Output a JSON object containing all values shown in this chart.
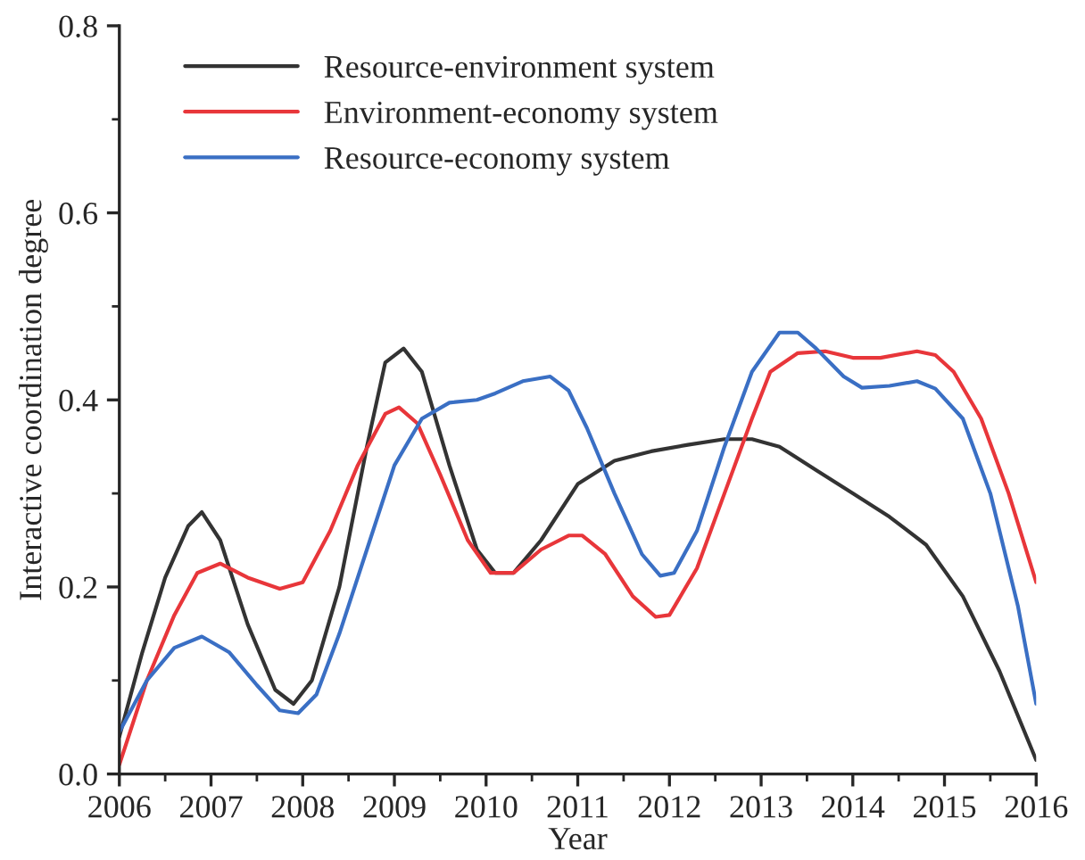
{
  "chart_data": {
    "type": "line",
    "xlabel": "Year",
    "ylabel": "Interactive coordination degree",
    "xlim": [
      2006,
      2016
    ],
    "ylim": [
      0,
      0.8
    ],
    "xticks": [
      2006,
      2007,
      2008,
      2009,
      2010,
      2011,
      2012,
      2013,
      2014,
      2015,
      2016
    ],
    "yticks": [
      {
        "value": 0,
        "label": "0.0"
      },
      {
        "value": 0.2,
        "label": "0.2"
      },
      {
        "value": 0.4,
        "label": "0.4"
      },
      {
        "value": 0.6,
        "label": "0.6"
      },
      {
        "value": 0.8,
        "label": "0.8"
      }
    ],
    "legend": "top left",
    "grid": false,
    "marker": "none",
    "line_style": "solid",
    "series": [
      {
        "name": "Resource-environment system",
        "color": "#333333",
        "x": [
          2006,
          2006.25,
          2006.5,
          2006.75,
          2006.9,
          2007.1,
          2007.4,
          2007.7,
          2007.9,
          2008.1,
          2008.4,
          2008.7,
          2008.9,
          2009.1,
          2009.3,
          2009.6,
          2009.9,
          2010.1,
          2010.3,
          2010.6,
          2011,
          2011.4,
          2011.8,
          2012.2,
          2012.6,
          2012.9,
          2013.2,
          2013.6,
          2014,
          2014.4,
          2014.8,
          2015.2,
          2015.6,
          2016
        ],
        "values": [
          0.04,
          0.13,
          0.21,
          0.265,
          0.28,
          0.25,
          0.16,
          0.09,
          0.075,
          0.1,
          0.2,
          0.35,
          0.44,
          0.455,
          0.43,
          0.33,
          0.24,
          0.215,
          0.215,
          0.25,
          0.31,
          0.335,
          0.345,
          0.352,
          0.358,
          0.358,
          0.35,
          0.325,
          0.3,
          0.275,
          0.245,
          0.19,
          0.11,
          0.015
        ]
      },
      {
        "name": "Environment-economy system",
        "color": "#e8363a",
        "x": [
          2006,
          2006.3,
          2006.6,
          2006.85,
          2007.1,
          2007.4,
          2007.75,
          2008,
          2008.3,
          2008.6,
          2008.9,
          2009.05,
          2009.25,
          2009.5,
          2009.8,
          2010.05,
          2010.3,
          2010.6,
          2010.9,
          2011.05,
          2011.3,
          2011.6,
          2011.85,
          2012,
          2012.3,
          2012.6,
          2012.9,
          2013.1,
          2013.4,
          2013.7,
          2014,
          2014.3,
          2014.7,
          2014.9,
          2015.1,
          2015.4,
          2015.7,
          2016
        ],
        "values": [
          0.01,
          0.1,
          0.17,
          0.215,
          0.225,
          0.21,
          0.198,
          0.205,
          0.26,
          0.33,
          0.385,
          0.392,
          0.375,
          0.32,
          0.25,
          0.215,
          0.215,
          0.24,
          0.255,
          0.255,
          0.235,
          0.19,
          0.168,
          0.17,
          0.22,
          0.3,
          0.38,
          0.43,
          0.45,
          0.452,
          0.445,
          0.445,
          0.452,
          0.448,
          0.43,
          0.38,
          0.3,
          0.205
        ]
      },
      {
        "name": "Resource-economy system",
        "color": "#3a6fc4",
        "x": [
          2006,
          2006.3,
          2006.6,
          2006.9,
          2007.2,
          2007.5,
          2007.75,
          2007.95,
          2008.15,
          2008.4,
          2008.7,
          2009,
          2009.3,
          2009.6,
          2009.9,
          2010.1,
          2010.4,
          2010.7,
          2010.9,
          2011.1,
          2011.4,
          2011.7,
          2011.9,
          2012.05,
          2012.3,
          2012.6,
          2012.9,
          2013.2,
          2013.4,
          2013.6,
          2013.9,
          2014.1,
          2014.4,
          2014.7,
          2014.9,
          2015.2,
          2015.5,
          2015.8,
          2016
        ],
        "values": [
          0.045,
          0.1,
          0.135,
          0.147,
          0.13,
          0.095,
          0.068,
          0.065,
          0.085,
          0.15,
          0.24,
          0.33,
          0.38,
          0.397,
          0.4,
          0.407,
          0.42,
          0.425,
          0.41,
          0.37,
          0.3,
          0.235,
          0.212,
          0.215,
          0.26,
          0.35,
          0.43,
          0.472,
          0.472,
          0.455,
          0.425,
          0.413,
          0.415,
          0.42,
          0.412,
          0.38,
          0.3,
          0.18,
          0.075
        ]
      }
    ]
  }
}
